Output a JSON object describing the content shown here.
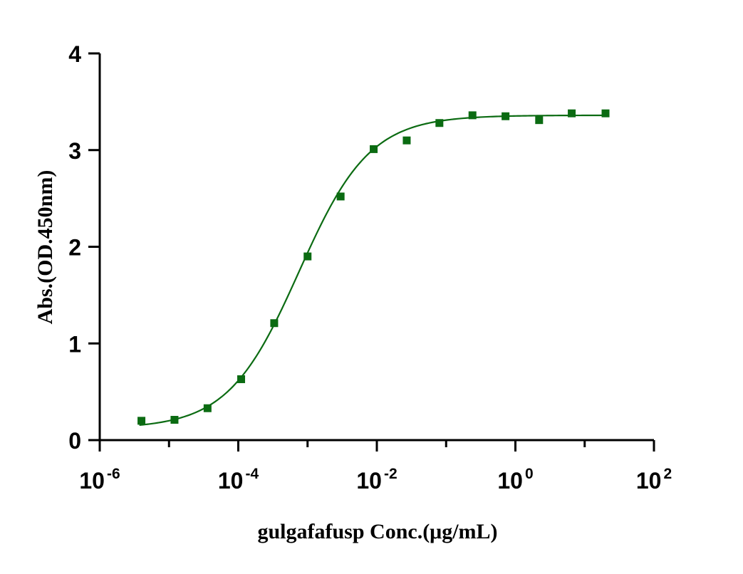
{
  "chart_data": {
    "type": "scatter",
    "xlabel": "gulgafafusp Conc.(μg/mL)",
    "ylabel": "Abs.(OD.450nm)",
    "x_scale": "log",
    "xlim": [
      1e-06,
      100
    ],
    "ylim": [
      0,
      4
    ],
    "y_ticks": [
      "0",
      "1",
      "2",
      "3",
      "4"
    ],
    "x_ticks": [
      {
        "base": "10",
        "exp": "-6",
        "value": 1e-06
      },
      {
        "base": "10",
        "exp": "-4",
        "value": 0.0001
      },
      {
        "base": "10",
        "exp": "-2",
        "value": 0.01
      },
      {
        "base": "10",
        "exp": "0",
        "value": 1
      },
      {
        "base": "10",
        "exp": "2",
        "value": 100
      }
    ],
    "grid": false,
    "series": [
      {
        "color": "#0b6b12",
        "marker": "square",
        "x": [
          4e-06,
          1.2e-05,
          3.6e-05,
          0.00011,
          0.00033,
          0.001,
          0.003,
          0.009,
          0.027,
          0.08,
          0.24,
          0.72,
          2.2,
          6.5,
          20
        ],
        "y": [
          0.2,
          0.21,
          0.33,
          0.63,
          1.21,
          1.9,
          2.52,
          3.01,
          3.1,
          3.28,
          3.36,
          3.35,
          3.31,
          3.38,
          3.38
        ]
      }
    ],
    "fit": {
      "model": "4PL",
      "bottom": 0.12,
      "top": 3.36,
      "ec50": 0.00075,
      "hill": 0.85,
      "color": "#0b6b12"
    }
  }
}
